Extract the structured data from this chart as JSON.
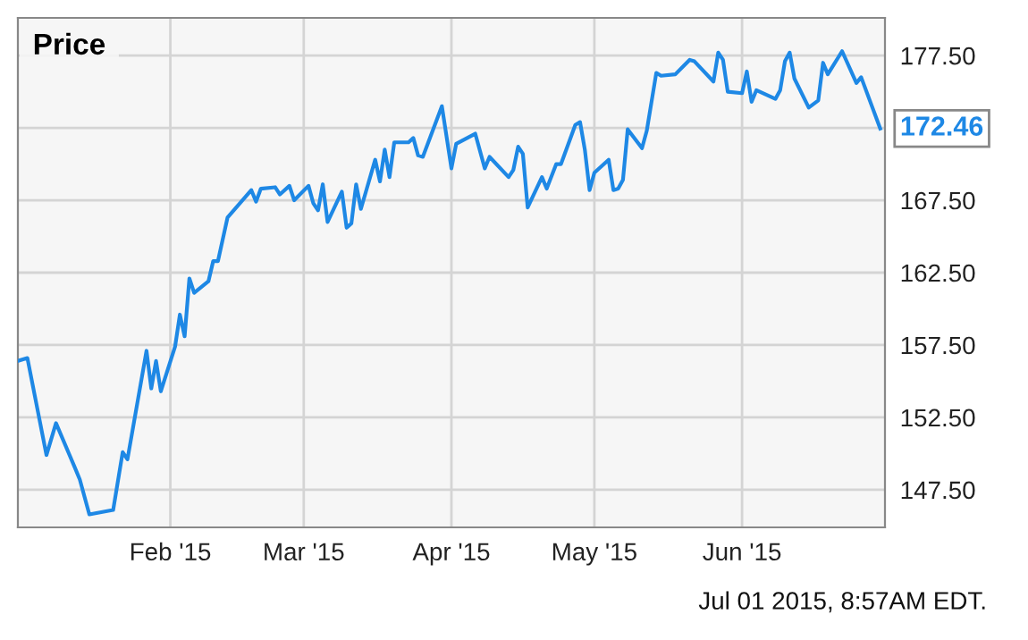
{
  "chart_data": {
    "type": "line",
    "x": [
      "2014-12-31",
      "2015-01-02",
      "2015-01-06",
      "2015-01-08",
      "2015-01-12",
      "2015-01-13",
      "2015-01-15",
      "2015-01-20",
      "2015-01-22",
      "2015-01-23",
      "2015-01-27",
      "2015-01-28",
      "2015-01-29",
      "2015-01-30",
      "2015-02-02",
      "2015-02-03",
      "2015-02-04",
      "2015-02-05",
      "2015-02-06",
      "2015-02-09",
      "2015-02-10",
      "2015-02-11",
      "2015-02-13",
      "2015-02-18",
      "2015-02-19",
      "2015-02-20",
      "2015-02-23",
      "2015-02-24",
      "2015-02-26",
      "2015-02-27",
      "2015-03-02",
      "2015-03-03",
      "2015-03-04",
      "2015-03-05",
      "2015-03-06",
      "2015-03-09",
      "2015-03-10",
      "2015-03-11",
      "2015-03-12",
      "2015-03-13",
      "2015-03-16",
      "2015-03-17",
      "2015-03-18",
      "2015-03-19",
      "2015-03-20",
      "2015-03-23",
      "2015-03-24",
      "2015-03-25",
      "2015-03-26",
      "2015-03-30",
      "2015-04-01",
      "2015-04-02",
      "2015-04-06",
      "2015-04-08",
      "2015-04-09",
      "2015-04-13",
      "2015-04-14",
      "2015-04-15",
      "2015-04-16",
      "2015-04-17",
      "2015-04-20",
      "2015-04-21",
      "2015-04-23",
      "2015-04-24",
      "2015-04-27",
      "2015-04-28",
      "2015-04-29",
      "2015-04-30",
      "2015-05-01",
      "2015-05-04",
      "2015-05-05",
      "2015-05-06",
      "2015-05-07",
      "2015-05-08",
      "2015-05-11",
      "2015-05-12",
      "2015-05-14",
      "2015-05-15",
      "2015-05-18",
      "2015-05-21",
      "2015-05-22",
      "2015-05-26",
      "2015-05-27",
      "2015-05-28",
      "2015-05-29",
      "2015-06-01",
      "2015-06-02",
      "2015-06-03",
      "2015-06-04",
      "2015-06-08",
      "2015-06-09",
      "2015-06-10",
      "2015-06-11",
      "2015-06-12",
      "2015-06-15",
      "2015-06-17",
      "2015-06-18",
      "2015-06-19",
      "2015-06-22",
      "2015-06-25",
      "2015-06-26",
      "2015-06-30"
    ],
    "series": [
      {
        "name": "Price",
        "color": "#1e88e5",
        "values": [
          156.4,
          156.6,
          149.9,
          152.1,
          149.0,
          148.2,
          145.8,
          146.1,
          150.1,
          149.6,
          157.1,
          154.5,
          156.4,
          154.3,
          157.4,
          159.6,
          158.1,
          162.1,
          161.1,
          161.9,
          163.3,
          163.3,
          166.3,
          168.2,
          167.4,
          168.3,
          168.4,
          167.9,
          168.5,
          167.5,
          168.5,
          167.3,
          166.8,
          168.6,
          166.0,
          168.1,
          165.6,
          165.9,
          168.6,
          166.9,
          170.3,
          168.8,
          171.0,
          169.1,
          171.5,
          171.5,
          171.8,
          170.6,
          170.5,
          174.0,
          169.7,
          171.4,
          172.1,
          169.7,
          170.5,
          169.1,
          169.6,
          171.2,
          170.7,
          167.0,
          169.1,
          168.3,
          170.0,
          170.0,
          172.7,
          172.9,
          171.0,
          168.2,
          169.4,
          170.3,
          168.2,
          168.3,
          168.9,
          172.4,
          171.1,
          172.3,
          176.3,
          176.1,
          176.2,
          177.2,
          177.1,
          175.7,
          177.7,
          177.2,
          175.0,
          174.9,
          176.4,
          174.3,
          175.1,
          174.5,
          175.1,
          177.1,
          177.7,
          175.9,
          173.9,
          174.4,
          177.0,
          176.2,
          177.8,
          175.6,
          176.0,
          172.46
        ]
      }
    ],
    "xlim": [
      "2014-12-31",
      "2015-07-01"
    ],
    "xticks": [
      {
        "value": "2015-02-01",
        "label": "Feb '15"
      },
      {
        "value": "2015-03-01",
        "label": "Mar '15"
      },
      {
        "value": "2015-04-01",
        "label": "Apr '15"
      },
      {
        "value": "2015-05-01",
        "label": "May '15"
      },
      {
        "value": "2015-06-01",
        "label": "Jun '15"
      }
    ],
    "ylim": [
      144.9,
      180.1
    ],
    "yticks": [
      {
        "value": 147.5,
        "label": "147.50"
      },
      {
        "value": 152.5,
        "label": "152.50"
      },
      {
        "value": 157.5,
        "label": "157.50"
      },
      {
        "value": 162.5,
        "label": "162.50"
      },
      {
        "value": 167.5,
        "label": "167.50"
      },
      {
        "value": 172.5,
        "label": null
      },
      {
        "value": 177.5,
        "label": "177.50"
      }
    ],
    "grid": true,
    "legend": "top left",
    "annotations": [
      {
        "text": "172.46",
        "x": "2015-06-30",
        "y": 172.46
      },
      "Jul 01 2015, 8:57AM EDT."
    ]
  }
}
